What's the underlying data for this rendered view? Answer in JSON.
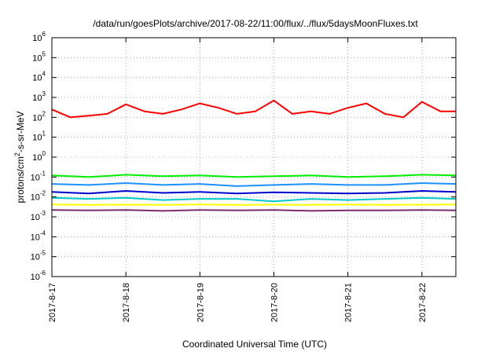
{
  "chart_data": {
    "type": "line",
    "title": "/data/run/goesPlots/archive/2017-08-22/11:00/flux/../flux/5daysMoonFluxes.txt",
    "xlabel": "Coordinated Universal Time (UTC)",
    "ylabel": {
      "prefix": "protons/cm",
      "superscript": "2",
      "suffix": "-s-sr-MeV"
    },
    "yscale": "log",
    "ylim": [
      1e-06,
      1000000.0
    ],
    "xlim": [
      "2017-08-17T00:00",
      "2017-08-22T11:00"
    ],
    "grid": true,
    "y_ticks": [
      {
        "value": 1e-06,
        "base": "10",
        "exp": "-6"
      },
      {
        "value": 1e-05,
        "base": "10",
        "exp": "-5"
      },
      {
        "value": 0.0001,
        "base": "10",
        "exp": "-4"
      },
      {
        "value": 0.001,
        "base": "10",
        "exp": "-3"
      },
      {
        "value": 0.01,
        "base": "10",
        "exp": "-2"
      },
      {
        "value": 0.1,
        "base": "10",
        "exp": "-1"
      },
      {
        "value": 1.0,
        "base": "10",
        "exp": "0"
      },
      {
        "value": 10.0,
        "base": "10",
        "exp": "1"
      },
      {
        "value": 100.0,
        "base": "10",
        "exp": "2"
      },
      {
        "value": 1000.0,
        "base": "10",
        "exp": "3"
      },
      {
        "value": 10000.0,
        "base": "10",
        "exp": "4"
      },
      {
        "value": 100000.0,
        "base": "10",
        "exp": "5"
      },
      {
        "value": 1000000.0,
        "base": "10",
        "exp": "6"
      }
    ],
    "x_ticks": [
      {
        "value": "2017-08-17T00:00",
        "label": "2017-8-17"
      },
      {
        "value": "2017-08-18T00:00",
        "label": "2017-8-18"
      },
      {
        "value": "2017-08-19T00:00",
        "label": "2017-8-19"
      },
      {
        "value": "2017-08-20T00:00",
        "label": "2017-8-20"
      },
      {
        "value": "2017-08-21T00:00",
        "label": "2017-8-21"
      },
      {
        "value": "2017-08-22T00:00",
        "label": "2017-8-22"
      }
    ],
    "series": [
      {
        "color": "#ff0000",
        "x": [
          "2017-08-17T00:00",
          "2017-08-17T06:00",
          "2017-08-17T12:00",
          "2017-08-17T18:00",
          "2017-08-18T00:00",
          "2017-08-18T06:00",
          "2017-08-18T12:00",
          "2017-08-18T18:00",
          "2017-08-19T00:00",
          "2017-08-19T06:00",
          "2017-08-19T12:00",
          "2017-08-19T18:00",
          "2017-08-20T00:00",
          "2017-08-20T06:00",
          "2017-08-20T12:00",
          "2017-08-20T18:00",
          "2017-08-21T00:00",
          "2017-08-21T06:00",
          "2017-08-21T12:00",
          "2017-08-21T18:00",
          "2017-08-22T00:00",
          "2017-08-22T06:00",
          "2017-08-22T11:00"
        ],
        "y": [
          250,
          100,
          120,
          150,
          450,
          200,
          150,
          250,
          500,
          300,
          150,
          200,
          700,
          150,
          200,
          150,
          300,
          500,
          150,
          100,
          600,
          200,
          200
        ]
      },
      {
        "color": "#00ee00",
        "x": [
          "2017-08-17T00:00",
          "2017-08-17T12:00",
          "2017-08-18T00:00",
          "2017-08-18T12:00",
          "2017-08-19T00:00",
          "2017-08-19T12:00",
          "2017-08-20T00:00",
          "2017-08-20T12:00",
          "2017-08-21T00:00",
          "2017-08-21T12:00",
          "2017-08-22T00:00",
          "2017-08-22T11:00"
        ],
        "y": [
          0.12,
          0.1,
          0.13,
          0.11,
          0.12,
          0.1,
          0.11,
          0.12,
          0.1,
          0.11,
          0.13,
          0.12
        ]
      },
      {
        "color": "#1e90ff",
        "x": [
          "2017-08-17T00:00",
          "2017-08-17T12:00",
          "2017-08-18T00:00",
          "2017-08-18T12:00",
          "2017-08-19T00:00",
          "2017-08-19T12:00",
          "2017-08-20T00:00",
          "2017-08-20T12:00",
          "2017-08-21T00:00",
          "2017-08-21T12:00",
          "2017-08-22T00:00",
          "2017-08-22T11:00"
        ],
        "y": [
          0.045,
          0.04,
          0.05,
          0.04,
          0.045,
          0.035,
          0.04,
          0.045,
          0.04,
          0.04,
          0.05,
          0.045
        ]
      },
      {
        "color": "#0000cc",
        "x": [
          "2017-08-17T00:00",
          "2017-08-17T12:00",
          "2017-08-18T00:00",
          "2017-08-18T12:00",
          "2017-08-19T00:00",
          "2017-08-19T12:00",
          "2017-08-20T00:00",
          "2017-08-20T12:00",
          "2017-08-21T00:00",
          "2017-08-21T12:00",
          "2017-08-22T00:00",
          "2017-08-22T11:00"
        ],
        "y": [
          0.018,
          0.015,
          0.02,
          0.016,
          0.018,
          0.015,
          0.017,
          0.016,
          0.015,
          0.016,
          0.02,
          0.018
        ]
      },
      {
        "color": "#00c8c8",
        "x": [
          "2017-08-17T00:00",
          "2017-08-17T12:00",
          "2017-08-18T00:00",
          "2017-08-18T12:00",
          "2017-08-19T00:00",
          "2017-08-19T12:00",
          "2017-08-20T00:00",
          "2017-08-20T12:00",
          "2017-08-21T00:00",
          "2017-08-21T12:00",
          "2017-08-22T00:00",
          "2017-08-22T11:00"
        ],
        "y": [
          0.009,
          0.008,
          0.009,
          0.007,
          0.008,
          0.008,
          0.006,
          0.008,
          0.007,
          0.008,
          0.009,
          0.008
        ]
      },
      {
        "color": "#ffff00",
        "x": [
          "2017-08-17T00:00",
          "2017-08-17T12:00",
          "2017-08-18T00:00",
          "2017-08-18T12:00",
          "2017-08-19T00:00",
          "2017-08-19T12:00",
          "2017-08-20T00:00",
          "2017-08-20T12:00",
          "2017-08-21T00:00",
          "2017-08-21T12:00",
          "2017-08-22T00:00",
          "2017-08-22T11:00"
        ],
        "y": [
          0.0042,
          0.004,
          0.0041,
          0.004,
          0.0042,
          0.004,
          0.0041,
          0.004,
          0.0042,
          0.004,
          0.0041,
          0.0042
        ]
      },
      {
        "color": "#7b2d6b",
        "x": [
          "2017-08-17T00:00",
          "2017-08-17T12:00",
          "2017-08-18T00:00",
          "2017-08-18T12:00",
          "2017-08-19T00:00",
          "2017-08-19T12:00",
          "2017-08-20T00:00",
          "2017-08-20T12:00",
          "2017-08-21T00:00",
          "2017-08-21T12:00",
          "2017-08-22T00:00",
          "2017-08-22T11:00"
        ],
        "y": [
          0.0022,
          0.0021,
          0.0022,
          0.002,
          0.0022,
          0.0021,
          0.0022,
          0.002,
          0.0021,
          0.0021,
          0.0022,
          0.0021
        ]
      }
    ]
  }
}
